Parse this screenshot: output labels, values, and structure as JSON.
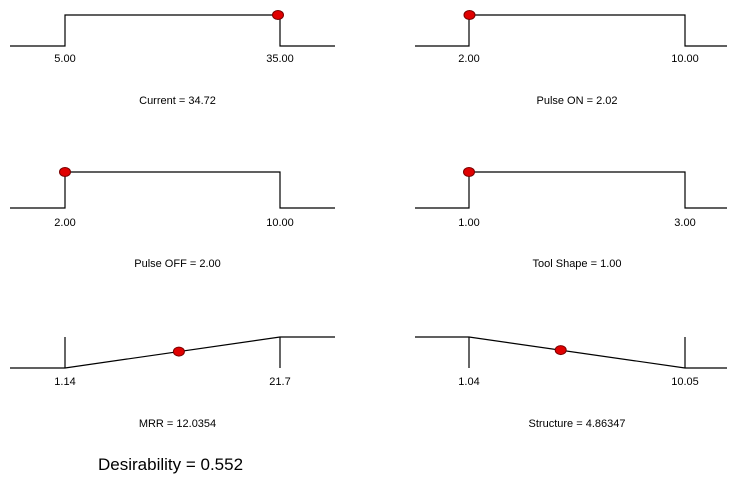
{
  "chart_data": [
    {
      "type": "line",
      "shape": "step-up",
      "tick_labels": [
        "5.00",
        "35.00"
      ],
      "caption": "Current = 34.72",
      "x": [
        5.0,
        35.0
      ],
      "point_x": 34.72,
      "point_y": 1
    },
    {
      "type": "line",
      "shape": "step-up",
      "tick_labels": [
        "2.00",
        "10.00"
      ],
      "caption": "Pulse ON = 2.02",
      "x": [
        2.0,
        10.0
      ],
      "point_x": 2.02,
      "point_y": 1
    },
    {
      "type": "line",
      "shape": "step-up",
      "tick_labels": [
        "2.00",
        "10.00"
      ],
      "caption": "Pulse OFF = 2.00",
      "x": [
        2.0,
        10.0
      ],
      "point_x": 2.0,
      "point_y": 1
    },
    {
      "type": "line",
      "shape": "step-up",
      "tick_labels": [
        "1.00",
        "3.00"
      ],
      "caption": "Tool Shape = 1.00",
      "x": [
        1.0,
        3.0
      ],
      "point_x": 1.0,
      "point_y": 1
    },
    {
      "type": "line",
      "shape": "ramp-up",
      "tick_labels": [
        "1.14",
        "21.7"
      ],
      "caption": "MRR = 12.0354",
      "x": [
        1.14,
        21.7
      ],
      "point_x": 12.0354,
      "point_y": 0.53
    },
    {
      "type": "line",
      "shape": "ramp-down",
      "tick_labels": [
        "1.04",
        "10.05"
      ],
      "caption": "Structure = 4.86347",
      "x": [
        1.04,
        10.05
      ],
      "point_x": 4.86347,
      "point_y": 0.576
    }
  ],
  "desirability_label": "Desirability = 0.552",
  "colors": {
    "line": "#000000",
    "marker_fill": "#e00000",
    "marker_stroke": "#7a0000"
  }
}
